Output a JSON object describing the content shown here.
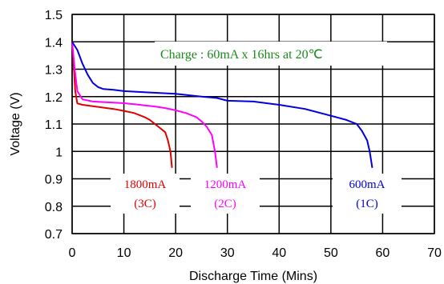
{
  "chart_data": {
    "type": "line",
    "title": "",
    "xlabel": "Discharge Time (Mins)",
    "ylabel": "Voltage (V)",
    "xlim": [
      0,
      70
    ],
    "ylim": [
      0.7,
      1.5
    ],
    "x_ticks": [
      "0",
      "10",
      "20",
      "30",
      "40",
      "50",
      "60",
      "70"
    ],
    "y_ticks": [
      "0.7",
      "0.8",
      "0.9",
      "1",
      "1.1",
      "1.2",
      "1.3",
      "1.4",
      "1.5"
    ],
    "grid": true,
    "annotation": "Charge : 60mA x 16hrs at 20℃",
    "series": [
      {
        "name": "1800mA (3C)",
        "label_line1": "1800mA",
        "label_line2": "(3C)",
        "color": "#e00000",
        "x": [
          0,
          0.3,
          0.6,
          1,
          2,
          4,
          6,
          8,
          10,
          12,
          14,
          15,
          16,
          17,
          18,
          18.5,
          19,
          19.3
        ],
        "y": [
          1.4,
          1.32,
          1.22,
          1.175,
          1.17,
          1.165,
          1.16,
          1.155,
          1.148,
          1.14,
          1.125,
          1.115,
          1.1,
          1.085,
          1.07,
          1.04,
          1.0,
          0.94
        ]
      },
      {
        "name": "1200mA (2C)",
        "label_line1": "1200mA",
        "label_line2": "(2C)",
        "color": "#ff00ff",
        "x": [
          0,
          0.5,
          1,
          2,
          4,
          6,
          8,
          10,
          12,
          14,
          16,
          18,
          20,
          22,
          24,
          25,
          26,
          27,
          27.6,
          28
        ],
        "y": [
          1.4,
          1.3,
          1.22,
          1.19,
          1.182,
          1.18,
          1.178,
          1.176,
          1.172,
          1.168,
          1.164,
          1.158,
          1.15,
          1.14,
          1.125,
          1.11,
          1.09,
          1.06,
          1.0,
          0.94
        ]
      },
      {
        "name": "600mA (1C)",
        "label_line1": "600mA",
        "label_line2": "(1C)",
        "color": "#0000e0",
        "x": [
          0,
          1,
          2,
          3,
          4,
          5,
          6,
          8,
          10,
          15,
          20,
          25,
          28,
          30,
          35,
          40,
          45,
          50,
          53,
          55,
          56,
          57,
          57.5,
          58
        ],
        "y": [
          1.4,
          1.37,
          1.32,
          1.28,
          1.25,
          1.235,
          1.228,
          1.225,
          1.22,
          1.215,
          1.21,
          1.2,
          1.195,
          1.185,
          1.182,
          1.17,
          1.155,
          1.13,
          1.115,
          1.1,
          1.075,
          1.04,
          1.0,
          0.94
        ]
      }
    ]
  }
}
